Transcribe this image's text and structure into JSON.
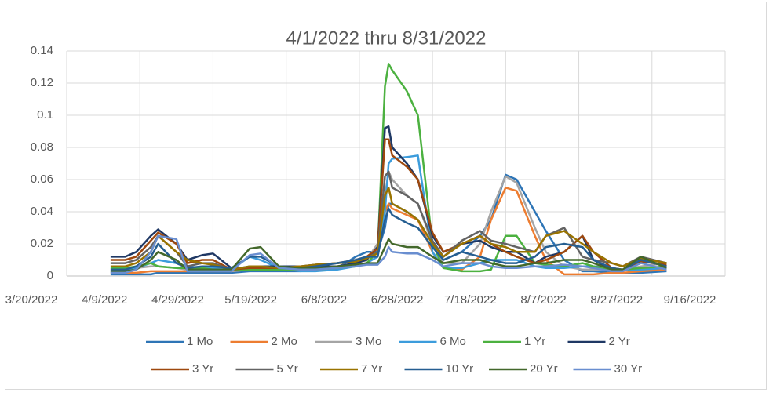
{
  "chart_data": {
    "type": "line",
    "title": "4/1/2022 thru 8/31/2022",
    "x": [
      "4/1/2022",
      "4/5/2022",
      "4/8/2022",
      "4/12/2022",
      "4/14/2022",
      "4/19/2022",
      "4/22/2022",
      "4/26/2022",
      "4/29/2022",
      "5/4/2022",
      "5/9/2022",
      "5/12/2022",
      "5/17/2022",
      "5/23/2022",
      "5/27/2022",
      "6/2/2022",
      "6/7/2022",
      "6/10/2022",
      "6/13/2022",
      "6/15/2022",
      "6/16/2022",
      "6/17/2022",
      "6/21/2022",
      "6/24/2022",
      "6/28/2022",
      "7/1/2022",
      "7/6/2022",
      "7/11/2022",
      "7/14/2022",
      "7/18/2022",
      "7/21/2022",
      "7/26/2022",
      "7/29/2022",
      "8/3/2022",
      "8/8/2022",
      "8/11/2022",
      "8/16/2022",
      "8/19/2022",
      "8/24/2022",
      "8/31/2022"
    ],
    "xlim": [
      "3/20/2022",
      "9/16/2022"
    ],
    "xticks": [
      "3/20/2022",
      "4/9/2022",
      "4/29/2022",
      "5/19/2022",
      "6/8/2022",
      "6/28/2022",
      "7/18/2022",
      "8/7/2022",
      "8/27/2022",
      "9/16/2022"
    ],
    "ylim": [
      0,
      0.14
    ],
    "yticks": [
      0,
      0.02,
      0.04,
      0.06,
      0.08,
      0.1,
      0.12,
      0.14
    ],
    "grid": true,
    "legend": "bottom",
    "series": [
      {
        "name": "1 Mo",
        "color": "#2E75B6",
        "values": [
          0.001,
          0.001,
          0.001,
          0.001,
          0.002,
          0.002,
          0.002,
          0.002,
          0.002,
          0.002,
          0.003,
          0.003,
          0.003,
          0.003,
          0.004,
          0.005,
          0.012,
          0.015,
          0.015,
          0.03,
          0.045,
          0.045,
          0.04,
          0.035,
          0.02,
          0.01,
          0.015,
          0.025,
          0.035,
          0.063,
          0.06,
          0.04,
          0.028,
          0.01,
          0.003,
          0.003,
          0.002,
          0.002,
          0.002,
          0.003
        ]
      },
      {
        "name": "2 Mo",
        "color": "#ED7D31",
        "values": [
          0.002,
          0.002,
          0.002,
          0.003,
          0.003,
          0.003,
          0.003,
          0.003,
          0.003,
          0.003,
          0.004,
          0.004,
          0.004,
          0.004,
          0.005,
          0.006,
          0.008,
          0.01,
          0.02,
          0.04,
          0.045,
          0.042,
          0.038,
          0.035,
          0.015,
          0.005,
          0.004,
          0.012,
          0.035,
          0.055,
          0.053,
          0.025,
          0.01,
          0.001,
          0.001,
          0.001,
          0.002,
          0.002,
          0.003,
          0.004
        ]
      },
      {
        "name": "3 Mo",
        "color": "#A5A5A5",
        "values": [
          0.004,
          0.004,
          0.005,
          0.006,
          0.006,
          0.005,
          0.004,
          0.004,
          0.004,
          0.003,
          0.004,
          0.004,
          0.004,
          0.004,
          0.005,
          0.006,
          0.008,
          0.01,
          0.02,
          0.05,
          0.065,
          0.06,
          0.05,
          0.045,
          0.02,
          0.008,
          0.008,
          0.02,
          0.04,
          0.062,
          0.058,
          0.03,
          0.015,
          0.006,
          0.004,
          0.004,
          0.004,
          0.004,
          0.006,
          0.008
        ]
      },
      {
        "name": "6 Mo",
        "color": "#3C9CDC",
        "values": [
          0.002,
          0.003,
          0.005,
          0.008,
          0.01,
          0.008,
          0.006,
          0.005,
          0.005,
          0.004,
          0.012,
          0.01,
          0.005,
          0.003,
          0.003,
          0.004,
          0.006,
          0.008,
          0.012,
          0.04,
          0.07,
          0.073,
          0.074,
          0.075,
          0.015,
          0.005,
          0.005,
          0.008,
          0.01,
          0.01,
          0.01,
          0.006,
          0.005,
          0.005,
          0.006,
          0.006,
          0.005,
          0.004,
          0.004,
          0.005
        ]
      },
      {
        "name": "1 Yr",
        "color": "#4CB140",
        "values": [
          0.005,
          0.005,
          0.006,
          0.008,
          0.006,
          0.005,
          0.005,
          0.005,
          0.004,
          0.004,
          0.004,
          0.004,
          0.004,
          0.004,
          0.004,
          0.005,
          0.006,
          0.008,
          0.015,
          0.118,
          0.132,
          0.128,
          0.115,
          0.1,
          0.02,
          0.005,
          0.003,
          0.003,
          0.004,
          0.025,
          0.025,
          0.008,
          0.007,
          0.006,
          0.008,
          0.006,
          0.004,
          0.004,
          0.005,
          0.006
        ]
      },
      {
        "name": "2 Yr",
        "color": "#1F3864",
        "values": [
          0.012,
          0.012,
          0.015,
          0.025,
          0.029,
          0.02,
          0.01,
          0.013,
          0.014,
          0.005,
          0.005,
          0.006,
          0.006,
          0.006,
          0.006,
          0.006,
          0.008,
          0.01,
          0.018,
          0.092,
          0.093,
          0.08,
          0.07,
          0.06,
          0.025,
          0.015,
          0.02,
          0.022,
          0.018,
          0.015,
          0.015,
          0.008,
          0.012,
          0.015,
          0.025,
          0.01,
          0.004,
          0.004,
          0.01,
          0.006
        ]
      },
      {
        "name": "3 Yr",
        "color": "#9E480E",
        "values": [
          0.01,
          0.01,
          0.012,
          0.022,
          0.027,
          0.02,
          0.008,
          0.01,
          0.01,
          0.004,
          0.005,
          0.005,
          0.005,
          0.006,
          0.007,
          0.008,
          0.01,
          0.012,
          0.017,
          0.085,
          0.085,
          0.075,
          0.068,
          0.06,
          0.027,
          0.015,
          0.02,
          0.025,
          0.02,
          0.015,
          0.012,
          0.008,
          0.01,
          0.015,
          0.025,
          0.015,
          0.005,
          0.004,
          0.009,
          0.007
        ]
      },
      {
        "name": "5 Yr",
        "color": "#636363",
        "values": [
          0.008,
          0.008,
          0.01,
          0.018,
          0.025,
          0.015,
          0.006,
          0.008,
          0.008,
          0.004,
          0.006,
          0.006,
          0.005,
          0.006,
          0.007,
          0.008,
          0.009,
          0.011,
          0.015,
          0.062,
          0.065,
          0.055,
          0.05,
          0.045,
          0.022,
          0.012,
          0.022,
          0.028,
          0.022,
          0.02,
          0.018,
          0.015,
          0.025,
          0.03,
          0.012,
          0.01,
          0.008,
          0.006,
          0.012,
          0.008
        ]
      },
      {
        "name": "7 Yr",
        "color": "#997300",
        "values": [
          0.006,
          0.006,
          0.008,
          0.015,
          0.025,
          0.015,
          0.01,
          0.008,
          0.007,
          0.004,
          0.006,
          0.006,
          0.005,
          0.006,
          0.007,
          0.008,
          0.009,
          0.011,
          0.014,
          0.05,
          0.055,
          0.045,
          0.04,
          0.035,
          0.02,
          0.012,
          0.02,
          0.025,
          0.02,
          0.018,
          0.015,
          0.015,
          0.025,
          0.028,
          0.02,
          0.015,
          0.008,
          0.006,
          0.011,
          0.008
        ]
      },
      {
        "name": "10 Yr",
        "color": "#255E91",
        "values": [
          0.004,
          0.004,
          0.006,
          0.012,
          0.02,
          0.008,
          0.005,
          0.006,
          0.006,
          0.005,
          0.012,
          0.012,
          0.006,
          0.005,
          0.006,
          0.008,
          0.01,
          0.012,
          0.012,
          0.035,
          0.042,
          0.038,
          0.033,
          0.03,
          0.018,
          0.01,
          0.015,
          0.012,
          0.01,
          0.008,
          0.008,
          0.012,
          0.018,
          0.02,
          0.018,
          0.01,
          0.005,
          0.004,
          0.01,
          0.006
        ]
      },
      {
        "name": "20 Yr",
        "color": "#43682B",
        "values": [
          0.003,
          0.003,
          0.004,
          0.01,
          0.015,
          0.01,
          0.004,
          0.004,
          0.004,
          0.004,
          0.017,
          0.018,
          0.006,
          0.005,
          0.005,
          0.006,
          0.007,
          0.008,
          0.008,
          0.018,
          0.023,
          0.02,
          0.018,
          0.018,
          0.012,
          0.008,
          0.01,
          0.01,
          0.008,
          0.006,
          0.006,
          0.008,
          0.008,
          0.01,
          0.01,
          0.008,
          0.004,
          0.004,
          0.012,
          0.005
        ]
      },
      {
        "name": "30 Yr",
        "color": "#698ED0",
        "values": [
          0.002,
          0.002,
          0.004,
          0.015,
          0.025,
          0.023,
          0.003,
          0.003,
          0.003,
          0.003,
          0.013,
          0.014,
          0.005,
          0.004,
          0.004,
          0.005,
          0.006,
          0.007,
          0.007,
          0.012,
          0.018,
          0.015,
          0.014,
          0.014,
          0.01,
          0.006,
          0.008,
          0.008,
          0.006,
          0.005,
          0.005,
          0.006,
          0.006,
          0.007,
          0.006,
          0.005,
          0.003,
          0.003,
          0.008,
          0.004
        ]
      }
    ]
  }
}
